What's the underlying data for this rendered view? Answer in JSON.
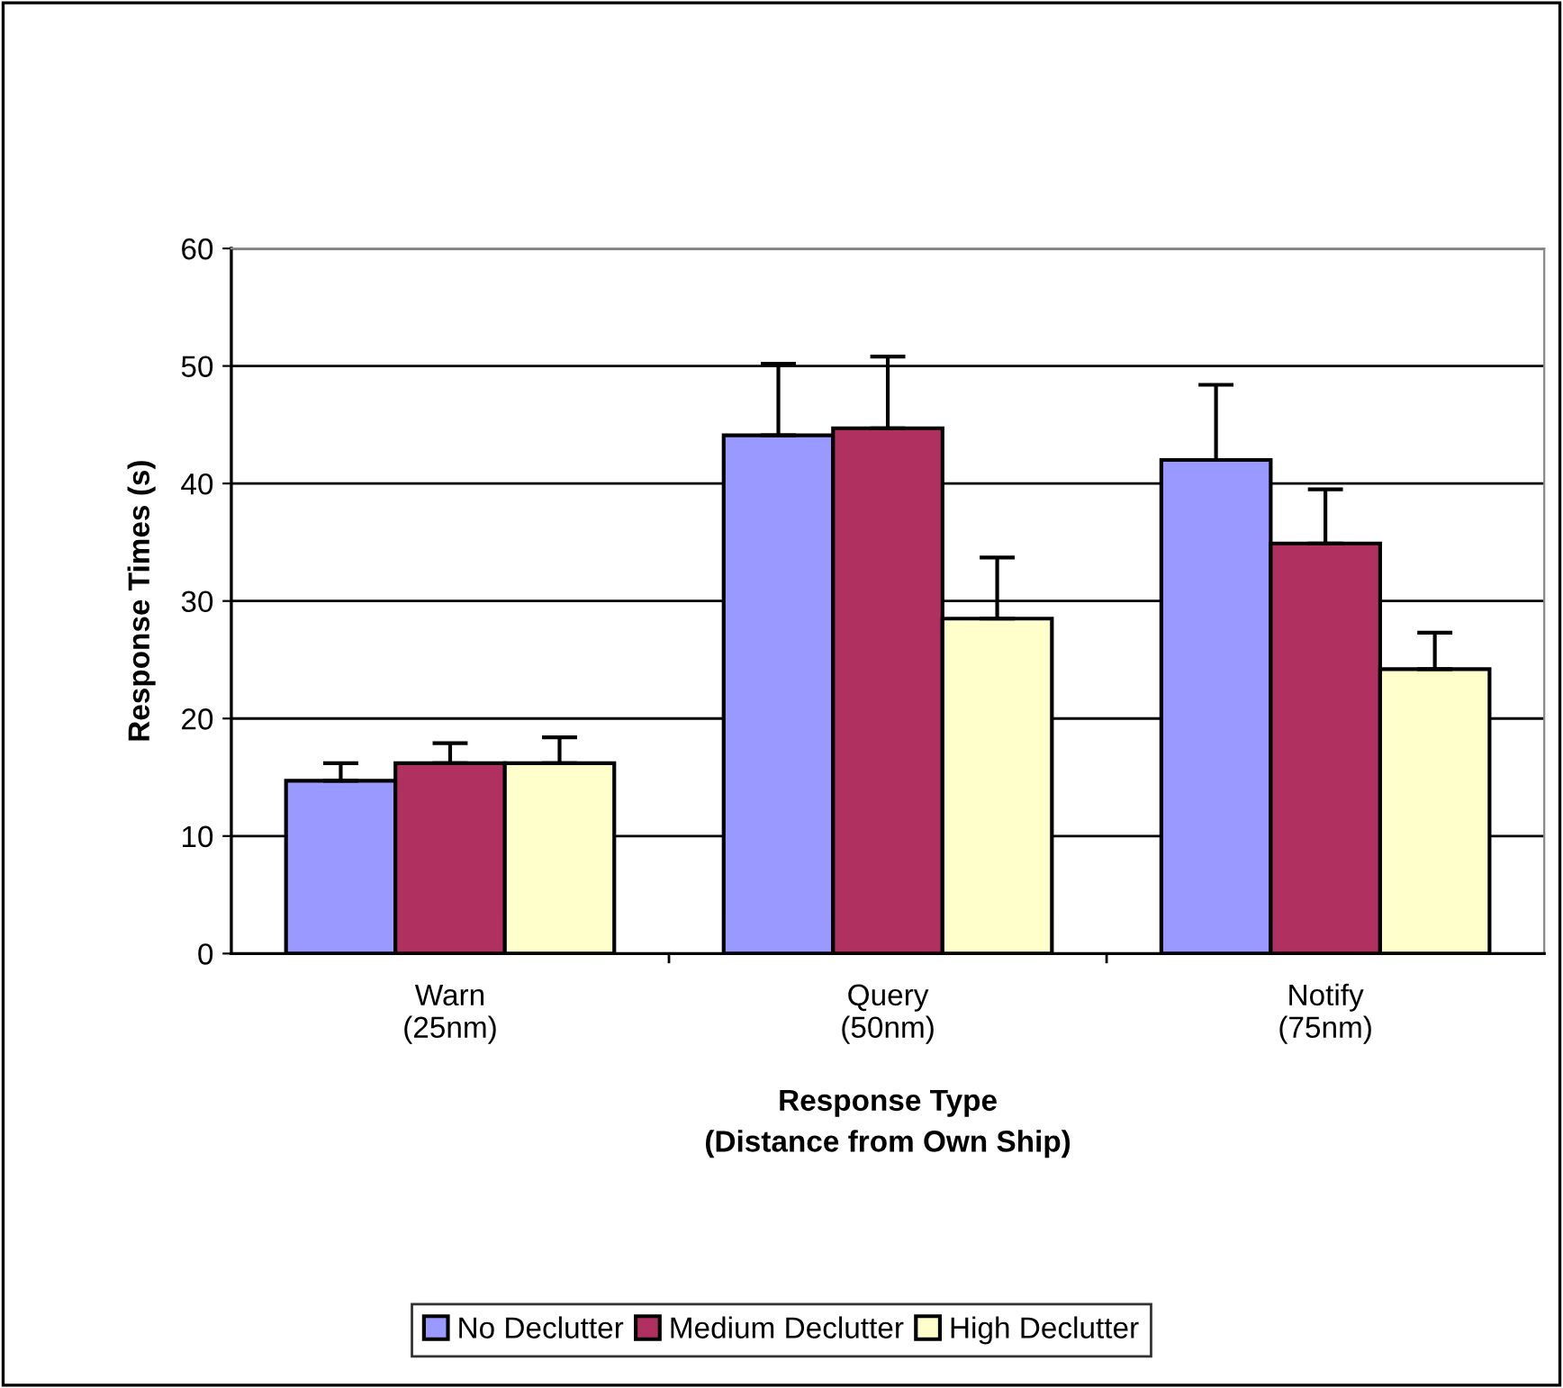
{
  "chart_data": {
    "type": "bar",
    "xlabel": "Response Type\n(Distance from Own Ship)",
    "ylabel": "Response Times (s)",
    "categories": [
      "Warn\n(25nm)",
      "Query\n(50nm)",
      "Notify\n(75nm)"
    ],
    "series": [
      {
        "name": "No Declutter",
        "color": "#9999ff",
        "values": [
          14.7,
          44.1,
          42.0
        ],
        "errors": [
          [
            14.7,
            16.2
          ],
          [
            44.1,
            50.2
          ],
          [
            42.0,
            48.4
          ]
        ]
      },
      {
        "name": "Medium Declutter",
        "color": "#b03060",
        "values": [
          16.2,
          44.7,
          34.9
        ],
        "errors": [
          [
            16.2,
            17.9
          ],
          [
            44.7,
            50.8
          ],
          [
            34.9,
            39.5
          ]
        ]
      },
      {
        "name": "High Declutter",
        "color": "#ffffcc",
        "values": [
          16.2,
          28.5,
          24.2
        ],
        "errors": [
          [
            16.2,
            18.4
          ],
          [
            28.5,
            33.7
          ],
          [
            24.2,
            27.3
          ]
        ]
      }
    ],
    "ylim": [
      0,
      60
    ],
    "yticks": [
      0,
      10,
      20,
      30,
      40,
      50,
      60
    ],
    "grid": "y",
    "legend": "bottom"
  }
}
